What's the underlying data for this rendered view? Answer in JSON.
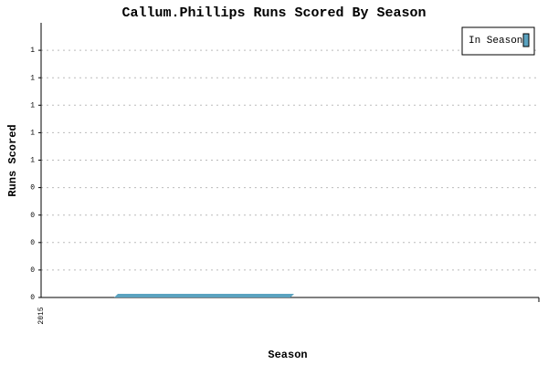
{
  "chart_data": {
    "type": "bar",
    "title": "Callum.Phillips Runs Scored By Season",
    "x_label": "Season",
    "y_label": "Runs Scored",
    "categories": [
      "2015"
    ],
    "series": [
      {
        "name": "In Season",
        "color": "#5ba3c0",
        "values": [
          0
        ]
      }
    ],
    "ylim": [
      0,
      1
    ],
    "yticks": [
      0,
      {
        "value": 0.1,
        "label": "0"
      },
      {
        "value": 0.2,
        "label": "0"
      },
      {
        "value": 0.3,
        "label": "0"
      },
      {
        "value": 0.4,
        "label": "0"
      },
      {
        "value": 0.5,
        "label": "1"
      },
      {
        "value": 0.6,
        "label": "1"
      },
      {
        "value": 0.7,
        "label": "1"
      },
      {
        "value": 0.8,
        "label": "1"
      },
      {
        "value": 0.9,
        "label": "1"
      }
    ],
    "grid": true,
    "legend": "top-right"
  }
}
